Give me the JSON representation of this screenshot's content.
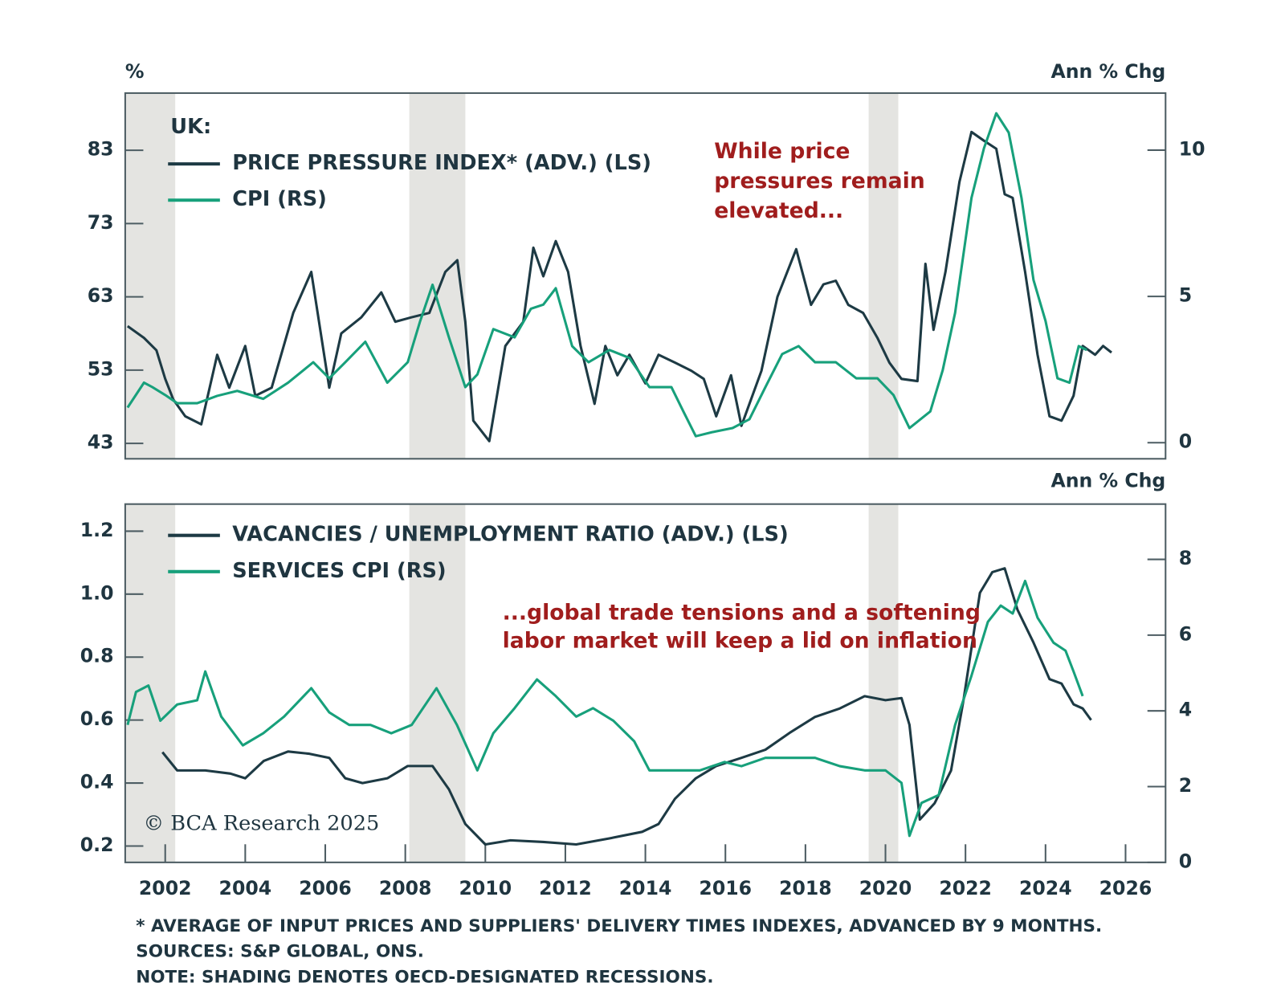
{
  "chart_data": [
    {
      "type": "line",
      "left_axis_title": "%",
      "right_axis_title": "Ann % Chg",
      "legend_title": "UK:",
      "legend": "upper left",
      "annotation": [
        "While price",
        "pressures remain",
        "elevated..."
      ],
      "xlim": [
        2001,
        2027
      ],
      "ylim": [
        40.9,
        90.8
      ],
      "yticks": [
        43,
        53,
        63,
        73,
        83
      ],
      "y2lim": [
        -0.55,
        11.95
      ],
      "y2ticks": [
        0,
        5,
        10
      ],
      "recessions": [
        {
          "start": 2001,
          "end": 2002.25
        },
        {
          "start": 2008.1,
          "end": 2009.5
        },
        {
          "start": 2019.58,
          "end": 2020.32
        }
      ],
      "series": [
        {
          "name": "PRICE PRESSURE INDEX* (ADV.) (LS)",
          "color": "#1d3a44",
          "x": [
            2001.06,
            2001.47,
            2001.78,
            2002.0,
            2002.2,
            2002.5,
            2002.9,
            2003.3,
            2003.6,
            2004.0,
            2004.25,
            2004.66,
            2005.2,
            2005.65,
            2006.1,
            2006.4,
            2006.9,
            2007.4,
            2007.75,
            2008.15,
            2008.6,
            2009.0,
            2009.3,
            2009.5,
            2009.7,
            2010.1,
            2010.5,
            2010.95,
            2011.2,
            2011.45,
            2011.76,
            2012.07,
            2012.38,
            2012.73,
            2013.0,
            2013.3,
            2013.6,
            2014.0,
            2014.33,
            2014.75,
            2015.15,
            2015.46,
            2015.77,
            2016.14,
            2016.4,
            2016.9,
            2017.3,
            2017.77,
            2018.14,
            2018.45,
            2018.76,
            2019.07,
            2019.44,
            2019.8,
            2020.1,
            2020.4,
            2020.8,
            2021.0,
            2021.2,
            2021.5,
            2021.85,
            2022.15,
            2022.46,
            2022.77,
            2022.98,
            2023.18,
            2023.49,
            2023.8,
            2024.1,
            2024.4,
            2024.7,
            2024.93,
            2025.24,
            2025.44,
            2025.65
          ],
          "values": [
            59,
            57.4,
            55.7,
            51.8,
            49,
            46.7,
            45.6,
            55.1,
            50.6,
            56.3,
            49.5,
            50.6,
            60.8,
            66.4,
            50.6,
            58,
            60.2,
            63.6,
            59.6,
            60.2,
            60.8,
            66.4,
            68,
            59.6,
            46.1,
            43.3,
            56.3,
            59.6,
            69.7,
            65.8,
            70.6,
            66.4,
            56.3,
            48.4,
            56.3,
            52.3,
            55.1,
            51.2,
            55.1,
            54,
            52.9,
            51.8,
            46.7,
            52.3,
            45.4,
            52.9,
            63,
            69.5,
            61.9,
            64.7,
            65.2,
            61.9,
            60.8,
            57.4,
            54,
            51.8,
            51.5,
            67.5,
            58.5,
            66.4,
            78.7,
            85.5,
            84.3,
            83.2,
            77,
            76.5,
            66.4,
            55.1,
            46.7,
            46.1,
            49.5,
            56.3,
            55.1,
            56.3,
            55.4
          ]
        },
        {
          "name": "CPI (RS)",
          "color": "#17a07b",
          "axis": "y2",
          "x": [
            2001.06,
            2001.47,
            2001.68,
            2002.0,
            2002.3,
            2002.8,
            2003.3,
            2003.8,
            2004.45,
            2005.07,
            2005.7,
            2006.1,
            2006.5,
            2007.0,
            2007.55,
            2008.06,
            2008.37,
            2008.68,
            2009.09,
            2009.5,
            2009.8,
            2010.2,
            2010.73,
            2011.14,
            2011.45,
            2011.76,
            2012.17,
            2012.58,
            2013.1,
            2013.6,
            2014.1,
            2014.65,
            2014.95,
            2015.26,
            2015.67,
            2016.18,
            2016.6,
            2017.0,
            2017.42,
            2017.83,
            2018.24,
            2018.76,
            2019.27,
            2019.8,
            2020.2,
            2020.6,
            2021.12,
            2021.43,
            2021.74,
            2022.15,
            2022.46,
            2022.77,
            2023.08,
            2023.4,
            2023.7,
            2024.0,
            2024.3,
            2024.6,
            2024.83,
            2025.03
          ],
          "values": [
            1.2,
            2.05,
            1.9,
            1.63,
            1.35,
            1.35,
            1.6,
            1.77,
            1.5,
            2.05,
            2.75,
            2.2,
            2.75,
            3.45,
            2.05,
            2.75,
            4.15,
            5.4,
            3.6,
            1.9,
            2.33,
            3.88,
            3.6,
            4.58,
            4.72,
            5.28,
            3.3,
            2.75,
            3.17,
            2.9,
            1.9,
            1.9,
            1.07,
            0.22,
            0.36,
            0.5,
            0.8,
            1.9,
            3.03,
            3.3,
            2.75,
            2.75,
            2.2,
            2.2,
            1.63,
            0.5,
            1.07,
            2.47,
            4.44,
            8.37,
            10.06,
            11.26,
            10.6,
            8.37,
            5.56,
            4.16,
            2.2,
            2.05,
            3.3,
            3.17
          ]
        }
      ]
    },
    {
      "type": "line",
      "right_axis_title": "Ann % Chg",
      "legend": "upper left",
      "annotation": [
        "...global trade tensions and a softening",
        "labor market will keep a lid on inflation"
      ],
      "watermark": "© BCA Research 2025",
      "xlim": [
        2001,
        2027
      ],
      "xticks": [
        2002,
        2004,
        2006,
        2008,
        2010,
        2012,
        2014,
        2016,
        2018,
        2020,
        2022,
        2024,
        2026
      ],
      "ylim": [
        0.148,
        1.286
      ],
      "yticks": [
        0.2,
        0.4,
        0.6,
        0.8,
        {
          "value": 1,
          "label": "1.0"
        },
        1.2
      ],
      "y2lim": [
        0,
        9.46
      ],
      "y2ticks": [
        0,
        2,
        4,
        6,
        8
      ],
      "recessions": [
        {
          "start": 2001,
          "end": 2002.25
        },
        {
          "start": 2008.1,
          "end": 2009.5
        },
        {
          "start": 2019.58,
          "end": 2020.32
        }
      ],
      "series": [
        {
          "name": "VACANCIES / UNEMPLOYMENT RATIO (ADV.) (LS)",
          "color": "#1d3a44",
          "x": [
            2001.93,
            2002.3,
            2003.0,
            2003.63,
            2004.0,
            2004.46,
            2005.07,
            2005.6,
            2006.1,
            2006.5,
            2006.93,
            2007.55,
            2008.06,
            2008.68,
            2009.09,
            2009.5,
            2010.0,
            2010.63,
            2011.45,
            2012.27,
            2013.1,
            2013.92,
            2014.33,
            2014.74,
            2015.26,
            2015.77,
            2016.4,
            2017.0,
            2017.6,
            2018.24,
            2018.86,
            2019.48,
            2020.0,
            2020.4,
            2020.6,
            2020.86,
            2021.23,
            2021.64,
            2021.95,
            2022.36,
            2022.67,
            2022.98,
            2023.3,
            2023.7,
            2024.1,
            2024.4,
            2024.7,
            2024.93,
            2025.14
          ],
          "values": [
            0.498,
            0.44,
            0.44,
            0.43,
            0.415,
            0.47,
            0.5,
            0.493,
            0.48,
            0.415,
            0.4,
            0.415,
            0.454,
            0.454,
            0.38,
            0.27,
            0.205,
            0.218,
            0.213,
            0.205,
            0.224,
            0.245,
            0.27,
            0.35,
            0.415,
            0.454,
            0.48,
            0.506,
            0.559,
            0.61,
            0.637,
            0.676,
            0.663,
            0.67,
            0.585,
            0.284,
            0.336,
            0.44,
            0.663,
            1.004,
            1.07,
            1.082,
            0.95,
            0.846,
            0.73,
            0.716,
            0.65,
            0.637,
            0.6
          ]
        },
        {
          "name": "SERVICES CPI (RS)",
          "color": "#17a07b",
          "axis": "y2",
          "x": [
            2001.06,
            2001.27,
            2001.58,
            2001.88,
            2002.3,
            2002.8,
            2003.0,
            2003.4,
            2003.94,
            2004.45,
            2004.97,
            2005.65,
            2006.1,
            2006.6,
            2007.13,
            2007.65,
            2008.16,
            2008.78,
            2009.29,
            2009.8,
            2010.2,
            2010.73,
            2011.29,
            2011.76,
            2012.27,
            2012.69,
            2013.2,
            2013.72,
            2014.1,
            2014.74,
            2015.36,
            2015.98,
            2016.4,
            2017.0,
            2017.6,
            2018.24,
            2018.86,
            2019.48,
            2020.0,
            2020.4,
            2020.6,
            2020.9,
            2021.33,
            2021.74,
            2022.15,
            2022.56,
            2022.88,
            2023.18,
            2023.49,
            2023.8,
            2024.2,
            2024.5,
            2024.7,
            2024.93
          ],
          "values": [
            3.63,
            4.5,
            4.67,
            3.74,
            4.17,
            4.28,
            5.04,
            3.85,
            3.09,
            3.41,
            3.85,
            4.6,
            3.96,
            3.63,
            3.63,
            3.41,
            3.63,
            4.6,
            3.63,
            2.43,
            3.41,
            4.07,
            4.83,
            4.39,
            3.85,
            4.07,
            3.74,
            3.2,
            2.43,
            2.43,
            2.43,
            2.65,
            2.54,
            2.76,
            2.76,
            2.76,
            2.54,
            2.43,
            2.43,
            2.1,
            0.7,
            1.57,
            1.78,
            3.63,
            4.93,
            6.35,
            6.78,
            6.57,
            7.43,
            6.46,
            5.8,
            5.59,
            5.04,
            4.39
          ]
        }
      ]
    }
  ],
  "footnotes": [
    "* AVERAGE OF INPUT PRICES AND SUPPLIERS' DELIVERY TIMES INDEXES, ADVANCED BY 9 MONTHS.",
    "SOURCES: S&P GLOBAL, ONS.",
    "NOTE: SHADING DENOTES OECD-DESIGNATED RECESSIONS."
  ]
}
